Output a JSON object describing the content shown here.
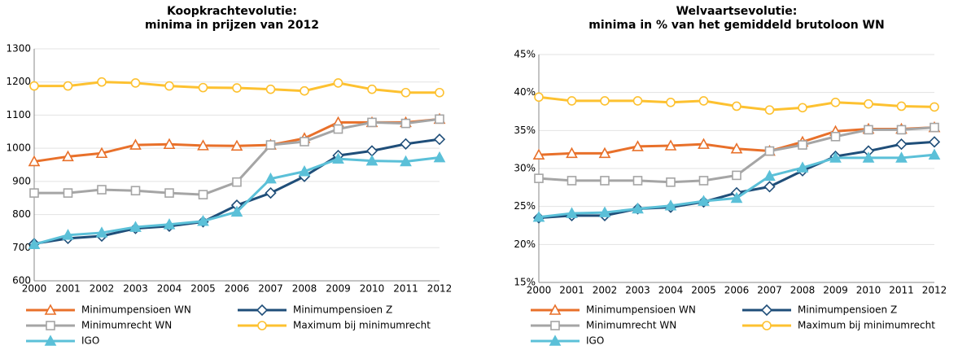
{
  "chart_data": [
    {
      "type": "line",
      "title": [
        "Koopkrachtevolutie:",
        "minima in prijzen van 2012"
      ],
      "categories": [
        "2000",
        "2001",
        "2002",
        "2003",
        "2004",
        "2005",
        "2006",
        "2007",
        "2008",
        "2009",
        "2010",
        "2011",
        "2012"
      ],
      "ylim": [
        600,
        1300
      ],
      "yticks": [
        600,
        700,
        800,
        900,
        1000,
        1100,
        1200,
        1300
      ],
      "grid": true,
      "series": [
        {
          "name": "Minimumpensioen WN",
          "color": "#e8702a",
          "marker": "triangle",
          "values": [
            960,
            975,
            985,
            1010,
            1012,
            1008,
            1007,
            1010,
            1030,
            1078,
            1078,
            1078,
            1088
          ]
        },
        {
          "name": "Minimumpensioen Z",
          "color": "#1f4e79",
          "marker": "diamond",
          "values": [
            712,
            728,
            735,
            758,
            765,
            778,
            828,
            865,
            915,
            978,
            992,
            1013,
            1027
          ]
        },
        {
          "name": "Minimumrecht WN",
          "color": "#a5a5a5",
          "marker": "square",
          "values": [
            865,
            865,
            875,
            872,
            865,
            860,
            898,
            1010,
            1020,
            1058,
            1078,
            1075,
            1088
          ]
        },
        {
          "name": "Maximum bij minimumrecht",
          "color": "#fdc130",
          "marker": "circle",
          "values": [
            1188,
            1188,
            1200,
            1197,
            1188,
            1183,
            1182,
            1178,
            1173,
            1197,
            1178,
            1168,
            1168
          ]
        },
        {
          "name": "IGO",
          "color": "#5bc0d8",
          "marker": "filled-triangle",
          "values": [
            710,
            738,
            745,
            762,
            770,
            780,
            808,
            908,
            930,
            968,
            962,
            960,
            972
          ]
        }
      ]
    },
    {
      "type": "line",
      "title": [
        "Welvaartsevolutie:",
        "minima in % van het gemiddeld brutoloon WN"
      ],
      "categories": [
        "2000",
        "2001",
        "2002",
        "2003",
        "2004",
        "2005",
        "2006",
        "2007",
        "2008",
        "2009",
        "2010",
        "2011",
        "2012"
      ],
      "ylim": [
        15,
        45
      ],
      "yticks": [
        {
          "value": 15,
          "label": "15%"
        },
        {
          "value": 20,
          "label": "20%"
        },
        {
          "value": 25,
          "label": "25%"
        },
        {
          "value": 30,
          "label": "30%"
        },
        {
          "value": 35,
          "label": "35%"
        },
        {
          "value": 40,
          "label": "40%"
        },
        {
          "value": 45,
          "label": "45%"
        }
      ],
      "grid": true,
      "series": [
        {
          "name": "Minimumpensioen WN",
          "color": "#e8702a",
          "marker": "triangle",
          "values": [
            31.8,
            32,
            32,
            32.9,
            33,
            33.2,
            32.6,
            32.3,
            33.5,
            34.9,
            35.2,
            35.2,
            35.4
          ]
        },
        {
          "name": "Minimumpensioen Z",
          "color": "#1f4e79",
          "marker": "diamond",
          "values": [
            23.5,
            23.8,
            23.8,
            24.7,
            24.9,
            25.6,
            26.8,
            27.6,
            29.7,
            31.6,
            32.3,
            33.2,
            33.5
          ]
        },
        {
          "name": "Minimumrecht WN",
          "color": "#a5a5a5",
          "marker": "square",
          "values": [
            28.7,
            28.4,
            28.4,
            28.4,
            28.2,
            28.4,
            29.1,
            32.3,
            33.1,
            34.2,
            35.1,
            35.1,
            35.4
          ]
        },
        {
          "name": "Maximum bij minimumrecht",
          "color": "#fdc130",
          "marker": "circle",
          "values": [
            39.4,
            38.9,
            38.9,
            38.9,
            38.7,
            38.9,
            38.2,
            37.7,
            38.0,
            38.7,
            38.5,
            38.2,
            38.1
          ]
        },
        {
          "name": "IGO",
          "color": "#5bc0d8",
          "marker": "filled-triangle",
          "values": [
            23.6,
            24.1,
            24.2,
            24.7,
            25.1,
            25.7,
            26.1,
            29,
            30.1,
            31.4,
            31.4,
            31.4,
            31.8
          ]
        }
      ]
    }
  ]
}
